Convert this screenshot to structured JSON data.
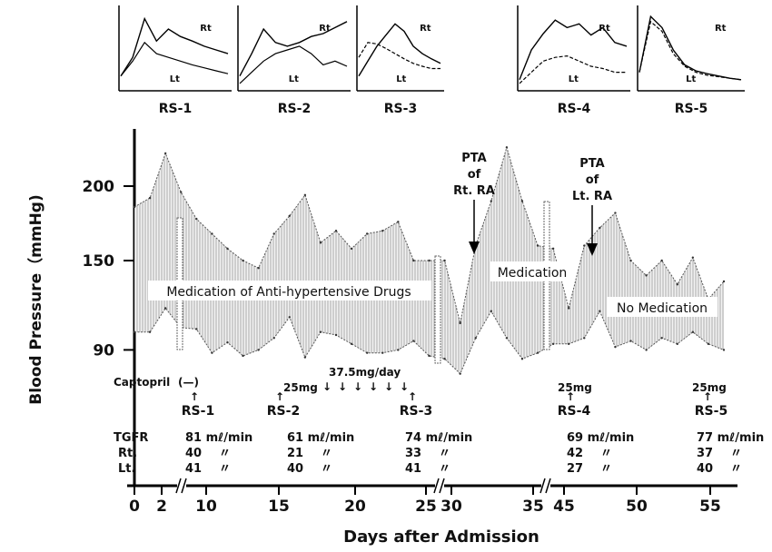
{
  "chart_data": {
    "type": "area",
    "ylabel": "Blood Pressure（mmHg)",
    "xlabel": "Days after Admission",
    "yticks": [
      90,
      150,
      200
    ],
    "x_tick_labels": [
      "0",
      "2",
      "10",
      "15",
      "20",
      "25",
      "30",
      "35",
      "45",
      "50",
      "55"
    ],
    "ylim": [
      64,
      228
    ],
    "annotations": {
      "phase_medication": "Medication of Anti-hypertensive Drugs",
      "phase_medication_2": "Medication",
      "phase_no_medication": "No Medication",
      "pta_rt": [
        "PTA",
        "of",
        "Rt. RA"
      ],
      "pta_lt": [
        "PTA",
        "of",
        "Lt. RA"
      ]
    },
    "captopril": {
      "label": "Captopril",
      "label_symbol": "(—)",
      "doses": [
        {
          "dose": "25mg",
          "study": "RS-2"
        },
        {
          "dose": "37.5mg/day",
          "study": ""
        },
        {
          "dose": "25mg",
          "study": "RS-4"
        },
        {
          "dose": "25mg",
          "study": "RS-5"
        }
      ]
    },
    "renal_scans": [
      "RS-1",
      "RS-2",
      "RS-3",
      "RS-4",
      "RS-5"
    ],
    "gfr_table": {
      "row_labels": [
        "TGFR",
        "Rt.",
        "Lt."
      ],
      "unit": "mℓ/min",
      "ditto": "〃",
      "columns": [
        {
          "study": "RS-1",
          "total": 81,
          "rt": 40,
          "lt": 41
        },
        {
          "study": "RS-2",
          "total": 61,
          "rt": 21,
          "lt": 40
        },
        {
          "study": "RS-3",
          "total": 74,
          "rt": 33,
          "lt": 41
        },
        {
          "study": "RS-4",
          "total": 69,
          "rt": 42,
          "lt": 27
        },
        {
          "study": "RS-5",
          "total": 77,
          "rt": 37,
          "lt": 40
        }
      ]
    },
    "series": [
      {
        "name": "",
        "role": "systolic",
        "values": [
          186,
          192,
          222,
          196,
          178,
          168,
          158,
          150,
          145,
          168,
          180,
          194,
          162,
          170,
          158,
          168,
          170,
          176,
          150,
          150,
          150,
          108,
          160,
          190,
          226,
          190,
          160,
          158,
          118,
          160,
          172,
          182,
          150,
          140,
          150,
          134,
          152,
          124,
          136
        ]
      },
      {
        "name": "",
        "role": "diastolic",
        "values": [
          102,
          102,
          118,
          105,
          104,
          88,
          95,
          86,
          90,
          98,
          112,
          85,
          102,
          100,
          94,
          88,
          88,
          90,
          96,
          86,
          84,
          74,
          98,
          116,
          98,
          84,
          88,
          94,
          94,
          98,
          116,
          92,
          96,
          90,
          98,
          94,
          102,
          94,
          90
        ]
      }
    ],
    "thumbnails": [
      {
        "label": "RS-1",
        "rt_label": "Rt",
        "lt_label": "Lt",
        "rt": [
          0.15,
          0.4,
          0.92,
          0.62,
          0.78,
          0.68,
          0.62,
          0.55,
          0.5,
          0.45
        ],
        "lt": [
          0.15,
          0.35,
          0.6,
          0.45,
          0.4,
          0.35,
          0.3,
          0.26,
          0.22,
          0.18
        ]
      },
      {
        "label": "RS-2",
        "rt_label": "Rt",
        "lt_label": "Lt",
        "rt": [
          0.15,
          0.45,
          0.78,
          0.6,
          0.55,
          0.6,
          0.68,
          0.72,
          0.8,
          0.88
        ],
        "lt": [
          0.05,
          0.2,
          0.35,
          0.45,
          0.5,
          0.55,
          0.45,
          0.3,
          0.35,
          0.28
        ]
      },
      {
        "label": "RS-3",
        "rt_label": "Rt",
        "lt_label": "Lt",
        "rt": [
          0.15,
          0.35,
          0.55,
          0.7,
          0.85,
          0.75,
          0.55,
          0.45,
          0.38,
          0.32
        ],
        "lt": [
          0.4,
          0.6,
          0.58,
          0.52,
          0.45,
          0.38,
          0.32,
          0.28,
          0.25,
          0.25
        ]
      },
      {
        "label": "RS-4",
        "rt_label": "Rt",
        "lt_label": "Lt",
        "rt": [
          0.1,
          0.5,
          0.72,
          0.9,
          0.8,
          0.85,
          0.7,
          0.8,
          0.6,
          0.55
        ],
        "lt": [
          0.05,
          0.2,
          0.35,
          0.4,
          0.42,
          0.35,
          0.28,
          0.25,
          0.2,
          0.2
        ]
      },
      {
        "label": "RS-5",
        "rt_label": "Rt",
        "lt_label": "Lt",
        "rt": [
          0.2,
          0.95,
          0.8,
          0.5,
          0.3,
          0.22,
          0.18,
          0.15,
          0.12,
          0.1
        ],
        "lt": [
          0.2,
          0.88,
          0.75,
          0.45,
          0.28,
          0.2,
          0.16,
          0.14,
          0.12,
          0.1
        ]
      }
    ]
  }
}
